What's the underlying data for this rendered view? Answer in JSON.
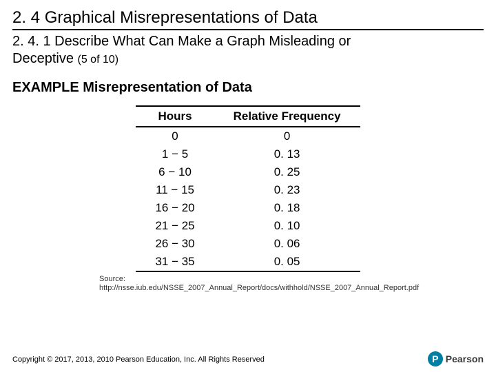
{
  "section_title": "2. 4 Graphical Misrepresentations of Data",
  "subsection_title_line1": "2. 4. 1 Describe What Can Make a Graph Misleading or",
  "subsection_title_line2": "Deceptive",
  "progress": "(5 of 10)",
  "example_title": "EXAMPLE Misrepresentation of Data",
  "table": {
    "columns": [
      "Hours",
      "Relative Frequency"
    ],
    "rows": [
      [
        "0",
        "0"
      ],
      [
        "1 − 5",
        "0. 13"
      ],
      [
        "6 − 10",
        "0. 25"
      ],
      [
        "11 − 15",
        "0. 23"
      ],
      [
        "16 − 20",
        "0. 18"
      ],
      [
        "21 − 25",
        "0. 10"
      ],
      [
        "26 − 30",
        "0. 06"
      ],
      [
        "31 − 35",
        "0. 05"
      ]
    ],
    "header_fontsize": 17,
    "cell_fontsize": 17,
    "border_color": "#000000",
    "col_widths": [
      "auto",
      "auto"
    ]
  },
  "source_label": "Source:",
  "source_url": "http://nsse.iub.edu/NSSE_2007_Annual_Report/docs/withhold/NSSE_2007_Annual_Report.pdf",
  "copyright": "Copyright © 2017, 2013, 2010 Pearson Education, Inc. All Rights Reserved",
  "logo": {
    "letter": "P",
    "brand": "Pearson",
    "circle_color": "#007fa3",
    "text_color": "#3a3a3a"
  },
  "colors": {
    "text": "#000000",
    "background": "#ffffff",
    "rule": "#000000"
  }
}
